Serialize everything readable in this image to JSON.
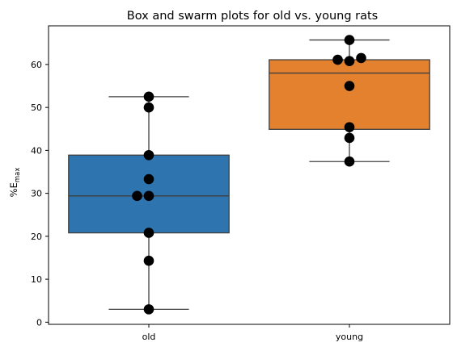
{
  "chart_data": {
    "type": "box",
    "title": "Box and swarm plots for old vs. young rats",
    "xlabel": "",
    "ylabel_prefix": "%E",
    "ylabel_subscript": "max",
    "categories": [
      "old",
      "young"
    ],
    "ylim": [
      -0.5,
      69
    ],
    "yticks": [
      0,
      10,
      20,
      30,
      40,
      50,
      60
    ],
    "grid": false,
    "boxes": [
      {
        "category": "old",
        "color": "#2E75B0",
        "whisker_low": 3.0,
        "q1": 20.8,
        "median": 29.4,
        "q3": 38.9,
        "whisker_high": 52.5
      },
      {
        "category": "young",
        "color": "#E4812E",
        "whisker_low": 37.4,
        "q1": 44.9,
        "median": 58.0,
        "q3": 61.1,
        "whisker_high": 65.7
      }
    ],
    "points": [
      {
        "category": "old",
        "values": [
          3.0,
          14.3,
          20.8,
          29.4,
          29.4,
          33.3,
          38.9,
          50.0,
          52.5
        ]
      },
      {
        "category": "young",
        "values": [
          37.4,
          42.9,
          45.4,
          55.0,
          60.8,
          61.1,
          61.5,
          65.7
        ]
      }
    ],
    "point_color": "#000000"
  }
}
